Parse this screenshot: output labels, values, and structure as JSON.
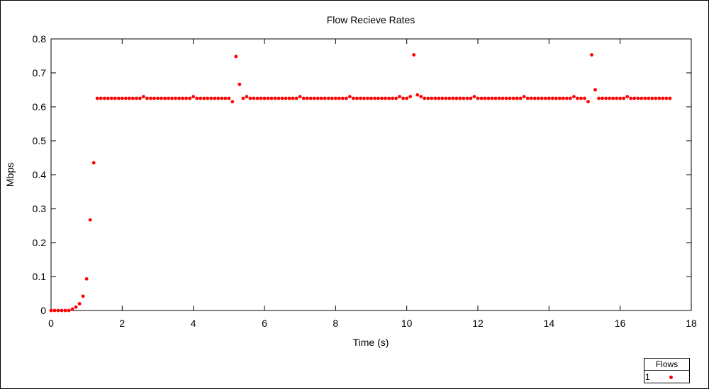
{
  "chart_data": {
    "type": "scatter",
    "title": "Flow Recieve Rates",
    "xlabel": "Time (s)",
    "ylabel": "Mbps",
    "xlim": [
      0,
      18
    ],
    "ylim": [
      0,
      0.8
    ],
    "xticks": [
      0,
      2,
      4,
      6,
      8,
      10,
      12,
      14,
      16,
      18
    ],
    "yticks": [
      0,
      0.1,
      0.2,
      0.3,
      0.4,
      0.5,
      0.6,
      0.7,
      0.8
    ],
    "xtick_labels": [
      "0",
      "2",
      "4",
      "6",
      "8",
      "10",
      "12",
      "14",
      "16",
      "18"
    ],
    "ytick_labels": [
      "0",
      "0.1",
      "0.2",
      "0.3",
      "0.4",
      "0.5",
      "0.6",
      "0.7",
      "0.8"
    ],
    "grid": false,
    "legend": {
      "title": "Flows",
      "position": "bottom-right"
    },
    "series": [
      {
        "name": "1",
        "color": "#ff0000",
        "points": [
          [
            0.0,
            0.0
          ],
          [
            0.1,
            0.0
          ],
          [
            0.2,
            0.0
          ],
          [
            0.3,
            0.0
          ],
          [
            0.4,
            0.0
          ],
          [
            0.5,
            0.0
          ],
          [
            0.6,
            0.004
          ],
          [
            0.7,
            0.01
          ],
          [
            0.8,
            0.02
          ],
          [
            0.9,
            0.042
          ],
          [
            1.0,
            0.093
          ],
          [
            1.1,
            0.267
          ],
          [
            1.2,
            0.435
          ],
          [
            1.3,
            0.625
          ],
          [
            1.4,
            0.625
          ],
          [
            1.5,
            0.625
          ],
          [
            1.6,
            0.625
          ],
          [
            1.7,
            0.625
          ],
          [
            1.8,
            0.625
          ],
          [
            1.9,
            0.625
          ],
          [
            2.0,
            0.625
          ],
          [
            2.1,
            0.625
          ],
          [
            2.2,
            0.625
          ],
          [
            2.3,
            0.625
          ],
          [
            2.4,
            0.625
          ],
          [
            2.5,
            0.625
          ],
          [
            2.6,
            0.63
          ],
          [
            2.7,
            0.625
          ],
          [
            2.8,
            0.625
          ],
          [
            2.9,
            0.625
          ],
          [
            3.0,
            0.625
          ],
          [
            3.1,
            0.625
          ],
          [
            3.2,
            0.625
          ],
          [
            3.3,
            0.625
          ],
          [
            3.4,
            0.625
          ],
          [
            3.5,
            0.625
          ],
          [
            3.6,
            0.625
          ],
          [
            3.7,
            0.625
          ],
          [
            3.8,
            0.625
          ],
          [
            3.9,
            0.625
          ],
          [
            4.0,
            0.63
          ],
          [
            4.1,
            0.625
          ],
          [
            4.2,
            0.625
          ],
          [
            4.3,
            0.625
          ],
          [
            4.4,
            0.625
          ],
          [
            4.5,
            0.625
          ],
          [
            4.6,
            0.625
          ],
          [
            4.7,
            0.625
          ],
          [
            4.8,
            0.625
          ],
          [
            4.9,
            0.625
          ],
          [
            5.0,
            0.625
          ],
          [
            5.1,
            0.615
          ],
          [
            5.2,
            0.748
          ],
          [
            5.3,
            0.666
          ],
          [
            5.4,
            0.625
          ],
          [
            5.5,
            0.63
          ],
          [
            5.6,
            0.625
          ],
          [
            5.7,
            0.625
          ],
          [
            5.8,
            0.625
          ],
          [
            5.9,
            0.625
          ],
          [
            6.0,
            0.625
          ],
          [
            6.1,
            0.625
          ],
          [
            6.2,
            0.625
          ],
          [
            6.3,
            0.625
          ],
          [
            6.4,
            0.625
          ],
          [
            6.5,
            0.625
          ],
          [
            6.6,
            0.625
          ],
          [
            6.7,
            0.625
          ],
          [
            6.8,
            0.625
          ],
          [
            6.9,
            0.625
          ],
          [
            7.0,
            0.63
          ],
          [
            7.1,
            0.625
          ],
          [
            7.2,
            0.625
          ],
          [
            7.3,
            0.625
          ],
          [
            7.4,
            0.625
          ],
          [
            7.5,
            0.625
          ],
          [
            7.6,
            0.625
          ],
          [
            7.7,
            0.625
          ],
          [
            7.8,
            0.625
          ],
          [
            7.9,
            0.625
          ],
          [
            8.0,
            0.625
          ],
          [
            8.1,
            0.625
          ],
          [
            8.2,
            0.625
          ],
          [
            8.3,
            0.625
          ],
          [
            8.4,
            0.63
          ],
          [
            8.5,
            0.625
          ],
          [
            8.6,
            0.625
          ],
          [
            8.7,
            0.625
          ],
          [
            8.8,
            0.625
          ],
          [
            8.9,
            0.625
          ],
          [
            9.0,
            0.625
          ],
          [
            9.1,
            0.625
          ],
          [
            9.2,
            0.625
          ],
          [
            9.3,
            0.625
          ],
          [
            9.4,
            0.625
          ],
          [
            9.5,
            0.625
          ],
          [
            9.6,
            0.625
          ],
          [
            9.7,
            0.625
          ],
          [
            9.8,
            0.63
          ],
          [
            9.9,
            0.625
          ],
          [
            10.0,
            0.625
          ],
          [
            10.1,
            0.63
          ],
          [
            10.2,
            0.753
          ],
          [
            10.3,
            0.635
          ],
          [
            10.4,
            0.63
          ],
          [
            10.5,
            0.625
          ],
          [
            10.6,
            0.625
          ],
          [
            10.7,
            0.625
          ],
          [
            10.8,
            0.625
          ],
          [
            10.9,
            0.625
          ],
          [
            11.0,
            0.625
          ],
          [
            11.1,
            0.625
          ],
          [
            11.2,
            0.625
          ],
          [
            11.3,
            0.625
          ],
          [
            11.4,
            0.625
          ],
          [
            11.5,
            0.625
          ],
          [
            11.6,
            0.625
          ],
          [
            11.7,
            0.625
          ],
          [
            11.8,
            0.625
          ],
          [
            11.9,
            0.63
          ],
          [
            12.0,
            0.625
          ],
          [
            12.1,
            0.625
          ],
          [
            12.2,
            0.625
          ],
          [
            12.3,
            0.625
          ],
          [
            12.4,
            0.625
          ],
          [
            12.5,
            0.625
          ],
          [
            12.6,
            0.625
          ],
          [
            12.7,
            0.625
          ],
          [
            12.8,
            0.625
          ],
          [
            12.9,
            0.625
          ],
          [
            13.0,
            0.625
          ],
          [
            13.1,
            0.625
          ],
          [
            13.2,
            0.625
          ],
          [
            13.3,
            0.63
          ],
          [
            13.4,
            0.625
          ],
          [
            13.5,
            0.625
          ],
          [
            13.6,
            0.625
          ],
          [
            13.7,
            0.625
          ],
          [
            13.8,
            0.625
          ],
          [
            13.9,
            0.625
          ],
          [
            14.0,
            0.625
          ],
          [
            14.1,
            0.625
          ],
          [
            14.2,
            0.625
          ],
          [
            14.3,
            0.625
          ],
          [
            14.4,
            0.625
          ],
          [
            14.5,
            0.625
          ],
          [
            14.6,
            0.625
          ],
          [
            14.7,
            0.63
          ],
          [
            14.8,
            0.625
          ],
          [
            14.9,
            0.625
          ],
          [
            15.0,
            0.625
          ],
          [
            15.1,
            0.615
          ],
          [
            15.2,
            0.753
          ],
          [
            15.3,
            0.65
          ],
          [
            15.4,
            0.625
          ],
          [
            15.5,
            0.625
          ],
          [
            15.6,
            0.625
          ],
          [
            15.7,
            0.625
          ],
          [
            15.8,
            0.625
          ],
          [
            15.9,
            0.625
          ],
          [
            16.0,
            0.625
          ],
          [
            16.1,
            0.625
          ],
          [
            16.2,
            0.63
          ],
          [
            16.3,
            0.625
          ],
          [
            16.4,
            0.625
          ],
          [
            16.5,
            0.625
          ],
          [
            16.6,
            0.625
          ],
          [
            16.7,
            0.625
          ],
          [
            16.8,
            0.625
          ],
          [
            16.9,
            0.625
          ],
          [
            17.0,
            0.625
          ],
          [
            17.1,
            0.625
          ],
          [
            17.2,
            0.625
          ],
          [
            17.3,
            0.625
          ],
          [
            17.4,
            0.625
          ]
        ]
      }
    ]
  }
}
